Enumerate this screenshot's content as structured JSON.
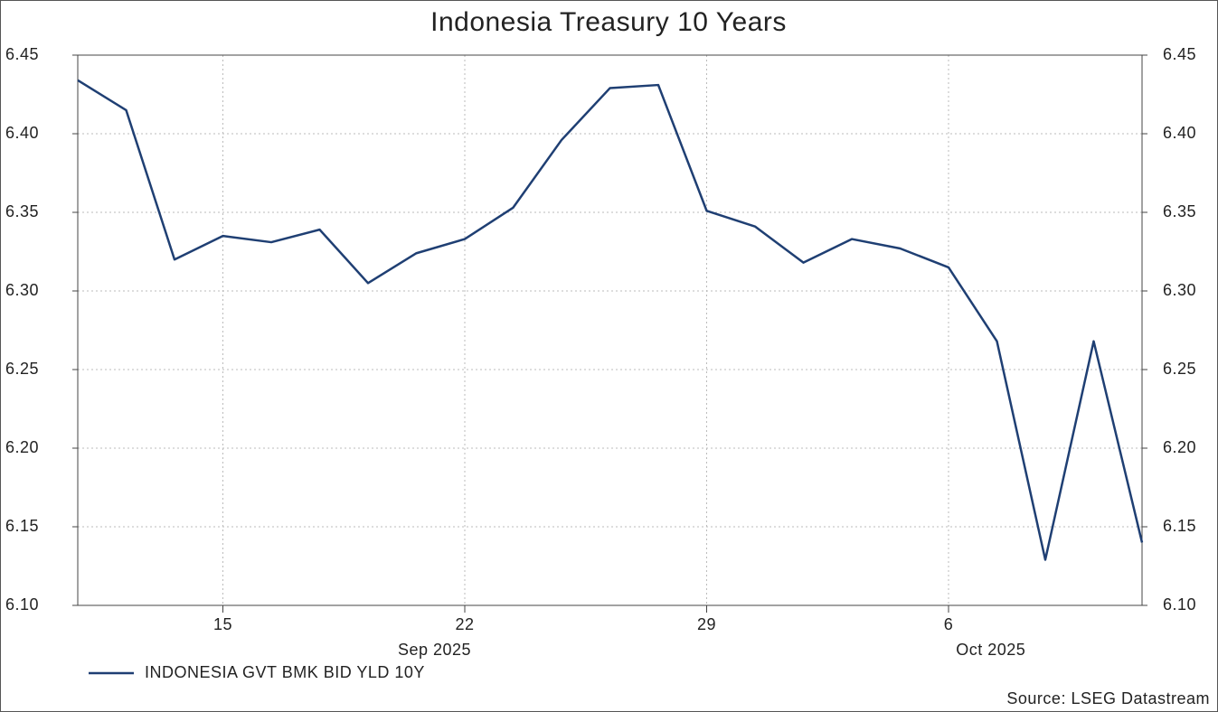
{
  "chart_data": {
    "type": "line",
    "title": "Indonesia Treasury 10 Years",
    "x": [
      "2025-09-10",
      "2025-09-11",
      "2025-09-12",
      "2025-09-15",
      "2025-09-16",
      "2025-09-17",
      "2025-09-18",
      "2025-09-19",
      "2025-09-22",
      "2025-09-23",
      "2025-09-24",
      "2025-09-25",
      "2025-09-26",
      "2025-09-29",
      "2025-09-30",
      "2025-10-01",
      "2025-10-02",
      "2025-10-03",
      "2025-10-06",
      "2025-10-07",
      "2025-10-08",
      "2025-10-09",
      "2025-10-10"
    ],
    "series": [
      {
        "name": "INDONESIA GVT BMK BID YLD 10Y",
        "color": "#1f3f73",
        "values": [
          6.434,
          6.415,
          6.32,
          6.335,
          6.331,
          6.339,
          6.305,
          6.324,
          6.333,
          6.353,
          6.396,
          6.429,
          6.431,
          6.351,
          6.341,
          6.318,
          6.333,
          6.327,
          6.315,
          6.268,
          6.129,
          6.268,
          6.14
        ]
      }
    ],
    "xticks": [
      {
        "value": "2025-09-15",
        "label": "15"
      },
      {
        "value": "2025-09-22",
        "label": "22"
      },
      {
        "value": "2025-09-29",
        "label": "29"
      },
      {
        "value": "2025-10-06",
        "label": "6"
      }
    ],
    "month_labels": [
      "Sep 2025",
      "Oct 2025"
    ],
    "ylim": [
      6.1,
      6.45
    ],
    "yticks": [
      {
        "value": 6.1,
        "label": "6.10"
      },
      6.15,
      {
        "value": 6.2,
        "label": "6.20"
      },
      6.25,
      {
        "value": 6.3,
        "label": "6.30"
      },
      6.35,
      {
        "value": 6.4,
        "label": "6.40"
      },
      6.45
    ],
    "y2lim": [
      6.1,
      6.45
    ],
    "y2ticks": [
      {
        "value": 6.1,
        "label": "6.10"
      },
      6.15,
      {
        "value": 6.2,
        "label": "6.20"
      },
      6.25,
      {
        "value": 6.3,
        "label": "6.30"
      },
      6.35,
      {
        "value": 6.4,
        "label": "6.40"
      },
      6.45
    ],
    "grid": true,
    "source": "Source: LSEG Datastream"
  }
}
